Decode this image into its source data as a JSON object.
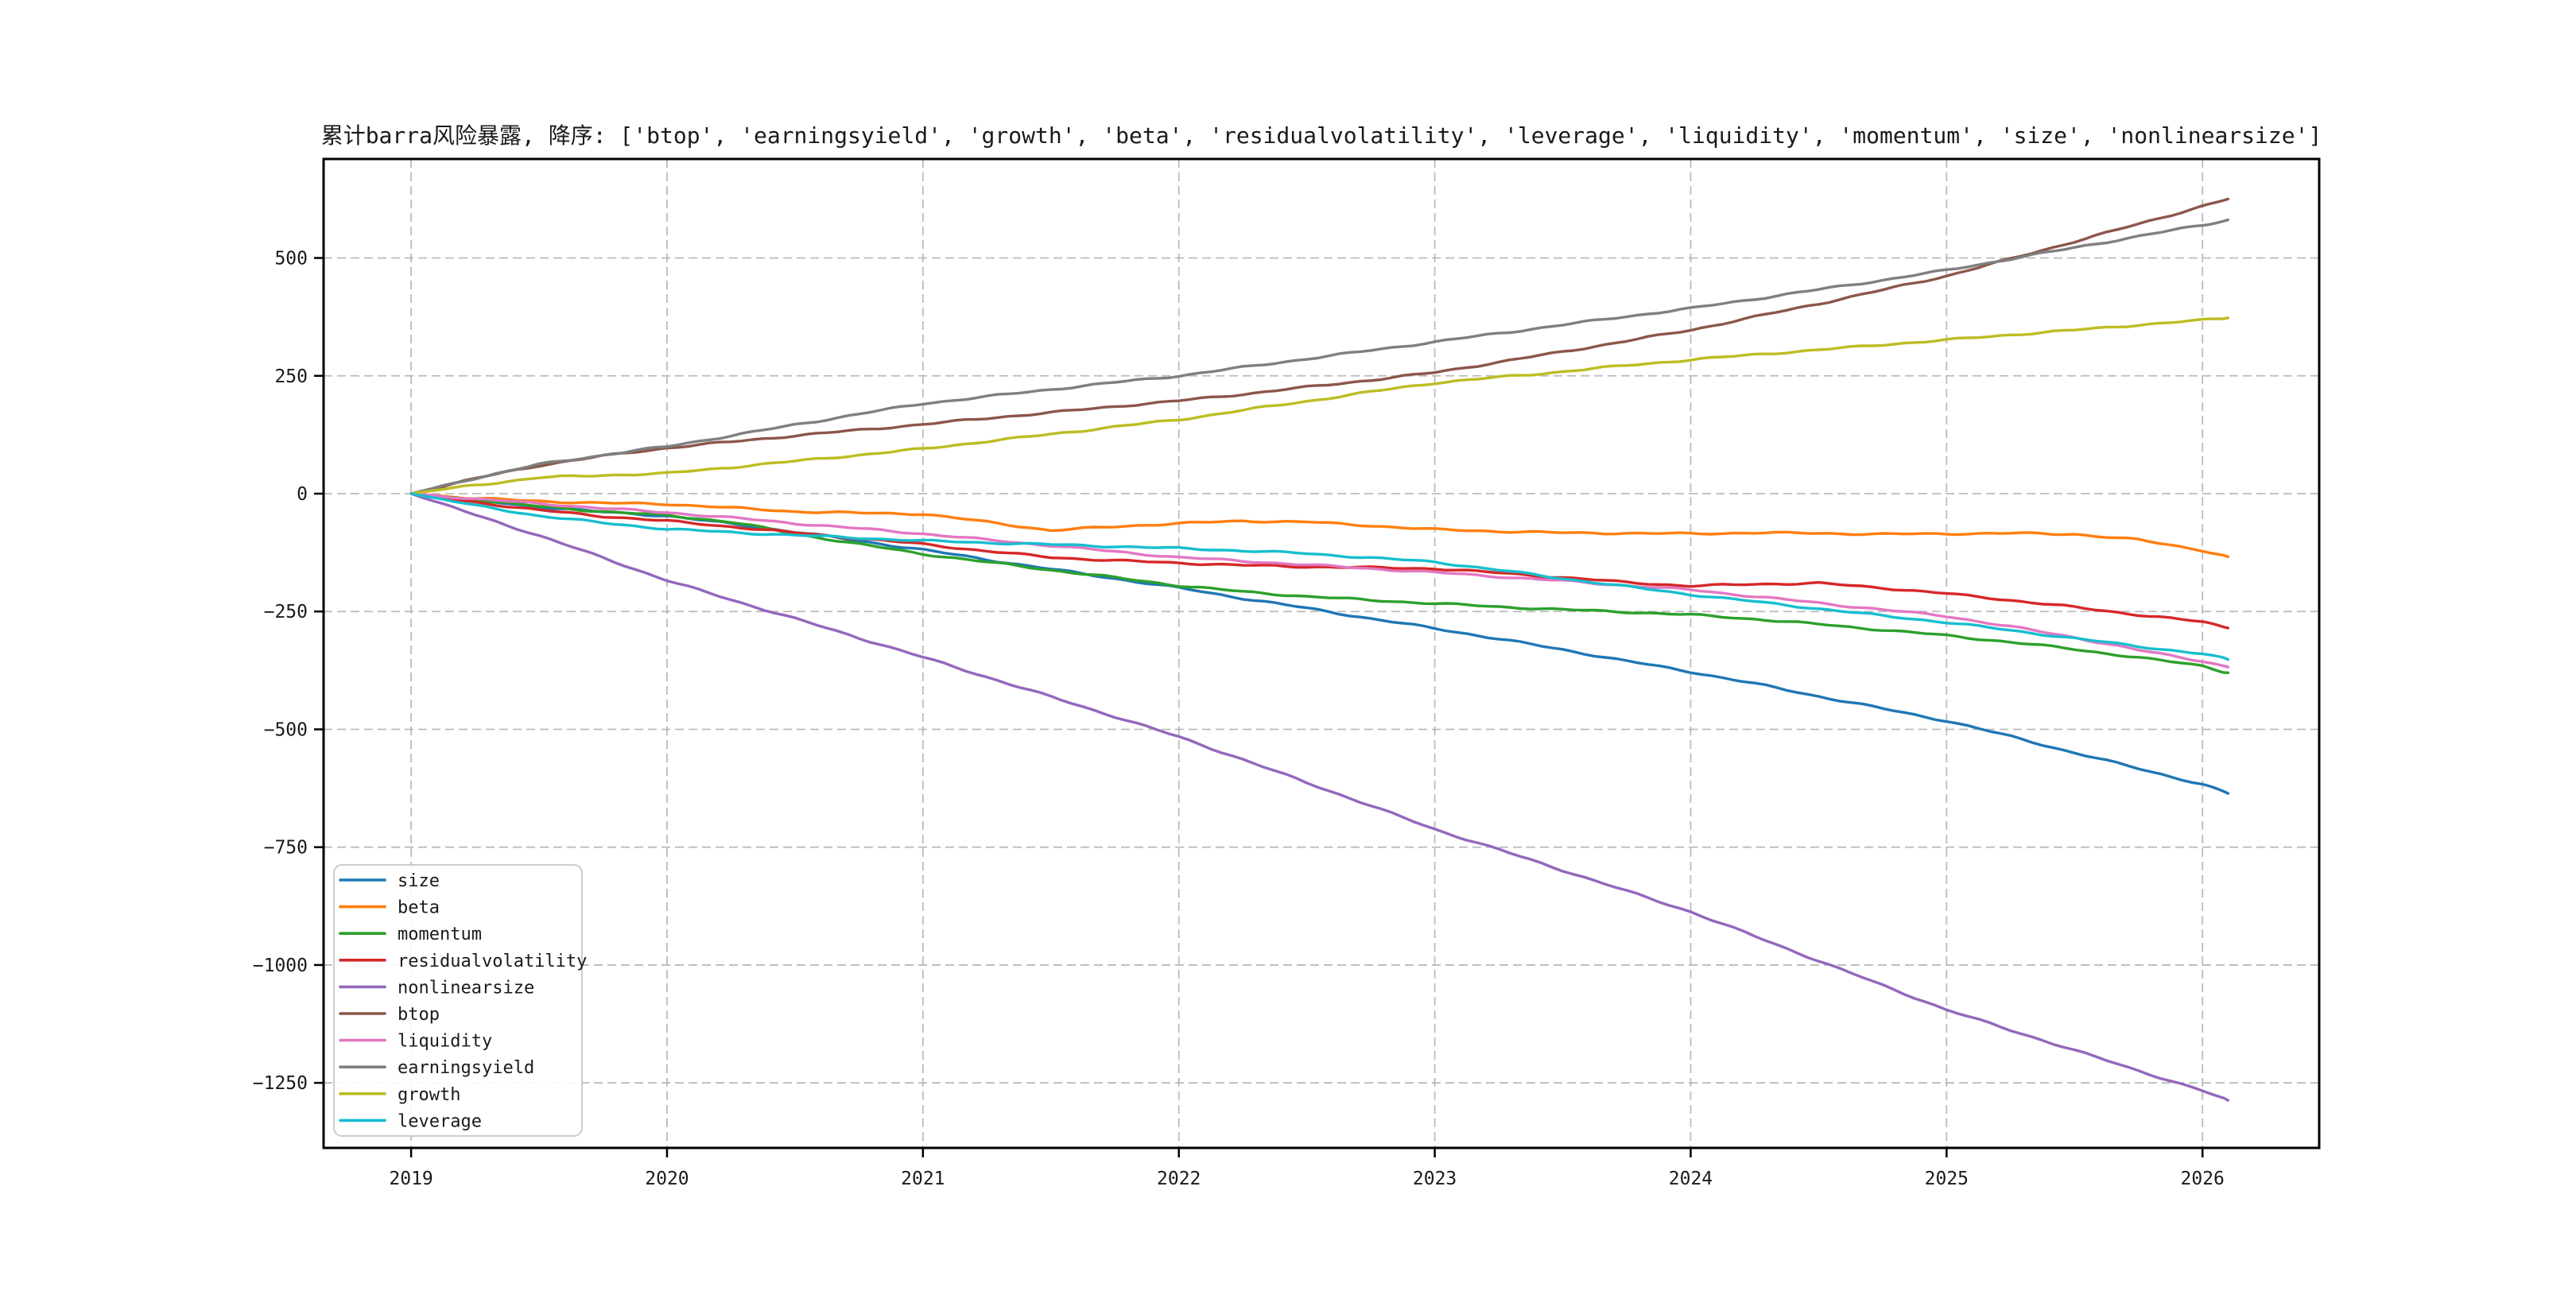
{
  "chart_data": {
    "type": "line",
    "title": "累计barra风险暴露, 降序: ['btop', 'earningsyield', 'growth', 'beta', 'residualvolatility', 'leverage', 'liquidity', 'momentum', 'size', 'nonlinearsize']",
    "xlabel": "",
    "ylabel": "",
    "xlim": [
      2018.658,
      2026.456
    ],
    "ylim": [
      -1388,
      710
    ],
    "grid": {
      "visible": true,
      "style": "dashed",
      "color": "#b0b0b0"
    },
    "legend": {
      "position": "lower-left",
      "labels": [
        "size",
        "beta",
        "momentum",
        "residualvolatility",
        "nonlinearsize",
        "btop",
        "liquidity",
        "earningsyield",
        "growth",
        "leverage"
      ]
    },
    "xticks": [
      2019,
      2020,
      2021,
      2022,
      2023,
      2024,
      2025,
      2026
    ],
    "xtick_labels": [
      "2019",
      "2020",
      "2021",
      "2022",
      "2023",
      "2024",
      "2025",
      "2026"
    ],
    "yticks": [
      500,
      250,
      0,
      -250,
      -500,
      -750,
      -1000,
      -1250
    ],
    "ytick_labels": [
      "500",
      "250",
      "0",
      "−250",
      "−500",
      "−750",
      "−1000",
      "−1250"
    ],
    "x": [
      2019.0,
      2019.25,
      2019.5,
      2019.75,
      2020.0,
      2020.25,
      2020.5,
      2020.75,
      2021.0,
      2021.25,
      2021.5,
      2021.75,
      2022.0,
      2022.25,
      2022.5,
      2022.75,
      2023.0,
      2023.25,
      2023.5,
      2023.75,
      2024.0,
      2024.25,
      2024.5,
      2024.75,
      2025.0,
      2025.25,
      2025.5,
      2025.75,
      2026.0,
      2026.1
    ],
    "series": [
      {
        "name": "size",
        "color": "#1f77b4",
        "values": [
          0,
          -14,
          -28,
          -39,
          -47,
          -64,
          -81,
          -100,
          -119,
          -140,
          -160,
          -180,
          -200,
          -222,
          -243,
          -265,
          -286,
          -308,
          -331,
          -355,
          -378,
          -403,
          -430,
          -456,
          -482,
          -515,
          -550,
          -583,
          -617,
          -636
        ]
      },
      {
        "name": "beta",
        "color": "#ff7f0e",
        "values": [
          0,
          -10,
          -16,
          -20,
          -22,
          -30,
          -38,
          -41,
          -43,
          -60,
          -78,
          -70,
          -63,
          -58,
          -60,
          -68,
          -76,
          -80,
          -83,
          -84,
          -85,
          -83,
          -84,
          -86,
          -85,
          -84,
          -86,
          -98,
          -120,
          -134
        ]
      },
      {
        "name": "momentum",
        "color": "#2ca02c",
        "values": [
          0,
          -13,
          -27,
          -38,
          -46,
          -60,
          -85,
          -107,
          -128,
          -145,
          -162,
          -178,
          -195,
          -208,
          -218,
          -226,
          -233,
          -240,
          -246,
          -251,
          -257,
          -266,
          -277,
          -289,
          -301,
          -315,
          -330,
          -348,
          -365,
          -380
        ]
      },
      {
        "name": "residualvolatility",
        "color": "#d62728",
        "values": [
          0,
          -18,
          -35,
          -48,
          -58,
          -70,
          -83,
          -95,
          -107,
          -122,
          -135,
          -142,
          -147,
          -152,
          -155,
          -157,
          -159,
          -168,
          -178,
          -188,
          -196,
          -192,
          -190,
          -200,
          -212,
          -226,
          -241,
          -257,
          -272,
          -285
        ]
      },
      {
        "name": "nonlinearsize",
        "color": "#9467bd",
        "values": [
          0,
          -45,
          -89,
          -136,
          -184,
          -225,
          -265,
          -306,
          -347,
          -389,
          -431,
          -473,
          -516,
          -564,
          -613,
          -662,
          -712,
          -755,
          -799,
          -843,
          -887,
          -939,
          -991,
          -1043,
          -1095,
          -1138,
          -1181,
          -1224,
          -1267,
          -1287
        ]
      },
      {
        "name": "btop",
        "color": "#8c564b",
        "values": [
          0,
          32,
          60,
          80,
          97,
          110,
          123,
          135,
          147,
          160,
          172,
          185,
          197,
          211,
          226,
          241,
          257,
          279,
          301,
          324,
          347,
          375,
          403,
          432,
          462,
          498,
          535,
          572,
          610,
          625
        ]
      },
      {
        "name": "liquidity",
        "color": "#e377c2",
        "values": [
          0,
          -11,
          -21,
          -31,
          -40,
          -51,
          -63,
          -74,
          -85,
          -98,
          -110,
          -123,
          -135,
          -143,
          -151,
          -159,
          -167,
          -176,
          -185,
          -195,
          -204,
          -218,
          -232,
          -246,
          -260,
          -282,
          -305,
          -332,
          -355,
          -368
        ]
      },
      {
        "name": "earningsyield",
        "color": "#7f7f7f",
        "values": [
          0,
          33,
          62,
          82,
          100,
          123,
          146,
          169,
          191,
          206,
          221,
          236,
          250,
          268,
          286,
          304,
          322,
          340,
          358,
          376,
          393,
          413,
          433,
          453,
          474,
          498,
          522,
          546,
          570,
          581
        ]
      },
      {
        "name": "growth",
        "color": "#bcbd22",
        "values": [
          0,
          18,
          34,
          39,
          43,
          56,
          69,
          82,
          95,
          111,
          126,
          142,
          157,
          177,
          196,
          216,
          235,
          247,
          259,
          272,
          284,
          295,
          305,
          316,
          326,
          337,
          347,
          358,
          368,
          373
        ]
      },
      {
        "name": "leverage",
        "color": "#17becf",
        "values": [
          0,
          -25,
          -47,
          -62,
          -75,
          -82,
          -88,
          -94,
          -100,
          -104,
          -108,
          -112,
          -116,
          -121,
          -127,
          -136,
          -145,
          -162,
          -180,
          -197,
          -214,
          -229,
          -244,
          -259,
          -273,
          -290,
          -307,
          -324,
          -340,
          -352
        ]
      }
    ]
  },
  "colors": {
    "background": "#ffffff",
    "spine": "#000000",
    "grid": "#b0b0b0",
    "legend_border": "#cccccc"
  }
}
